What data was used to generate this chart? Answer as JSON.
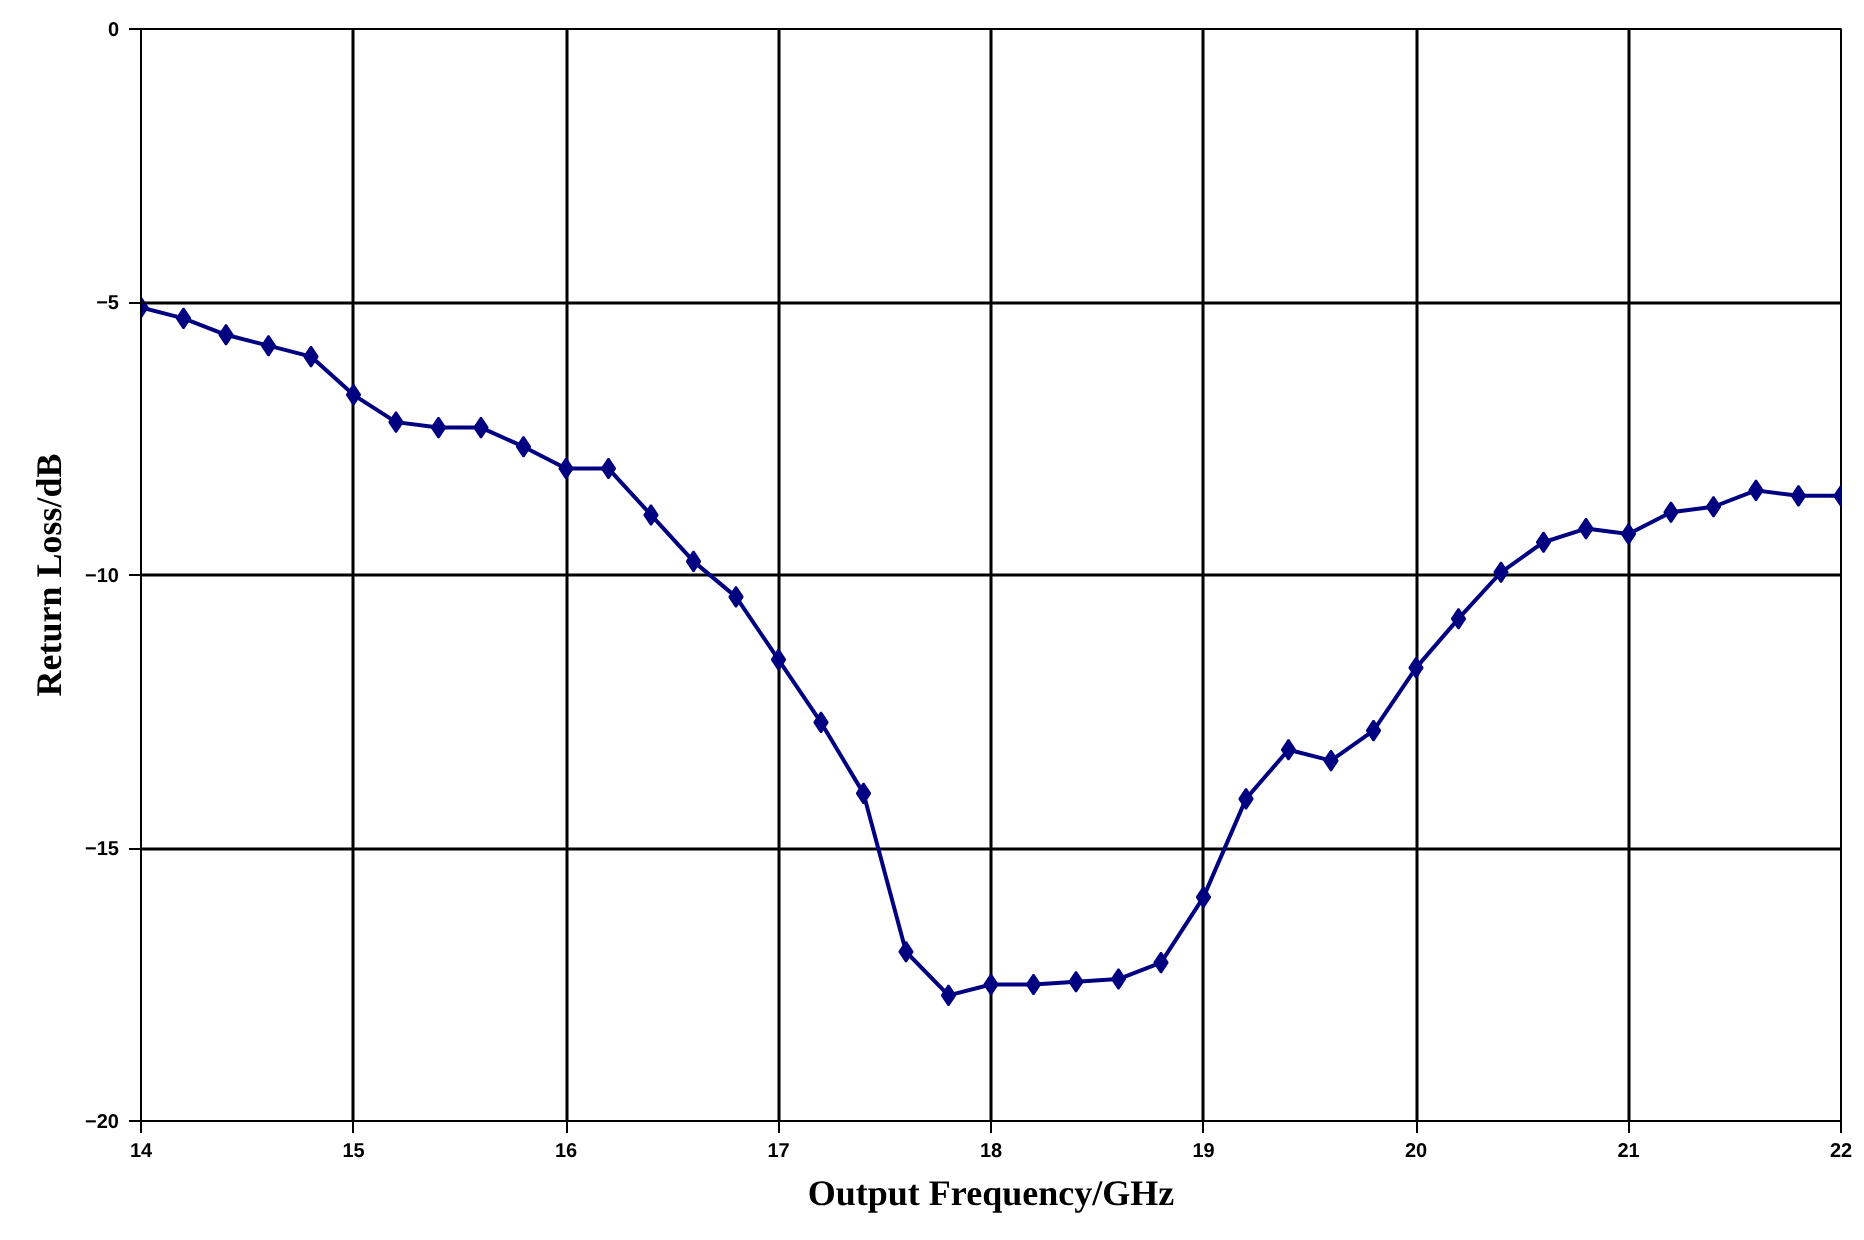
{
  "chart_data": {
    "type": "line",
    "xlabel": "Output Frequency/GHz",
    "ylabel": "Return Loss/dB",
    "x": [
      14.0,
      14.2,
      14.4,
      14.6,
      14.8,
      15.0,
      15.2,
      15.4,
      15.6,
      15.8,
      16.0,
      16.2,
      16.4,
      16.6,
      16.8,
      17.0,
      17.2,
      17.4,
      17.6,
      17.8,
      18.0,
      18.2,
      18.4,
      18.6,
      18.8,
      19.0,
      19.2,
      19.4,
      19.6,
      19.8,
      20.0,
      20.2,
      20.4,
      20.6,
      20.8,
      21.0,
      21.2,
      21.4,
      21.6,
      21.8,
      22.0
    ],
    "series": [
      {
        "color": "#000080",
        "values": [
          -5.1,
          -5.3,
          -5.6,
          -5.8,
          -6.0,
          -6.7,
          -7.2,
          -7.3,
          -7.3,
          -7.65,
          -8.05,
          -8.05,
          -8.9,
          -9.75,
          -10.4,
          -11.55,
          -12.7,
          -14.0,
          -16.9,
          -17.7,
          -17.5,
          -17.5,
          -17.45,
          -17.4,
          -17.1,
          -15.9,
          -14.1,
          -13.2,
          -13.4,
          -12.85,
          -11.7,
          -10.8,
          -9.95,
          -9.4,
          -9.15,
          -9.25,
          -8.85,
          -8.75,
          -8.45,
          -8.55,
          -8.55
        ]
      }
    ],
    "xlim": [
      14,
      22
    ],
    "xticks": [
      14,
      15,
      16,
      17,
      18,
      19,
      20,
      21,
      22
    ],
    "ylim": [
      -20,
      0
    ],
    "yticks": [
      -20,
      -15,
      -10,
      -5,
      0
    ],
    "grid": true,
    "marker": "diamond",
    "line_style": "solid"
  }
}
